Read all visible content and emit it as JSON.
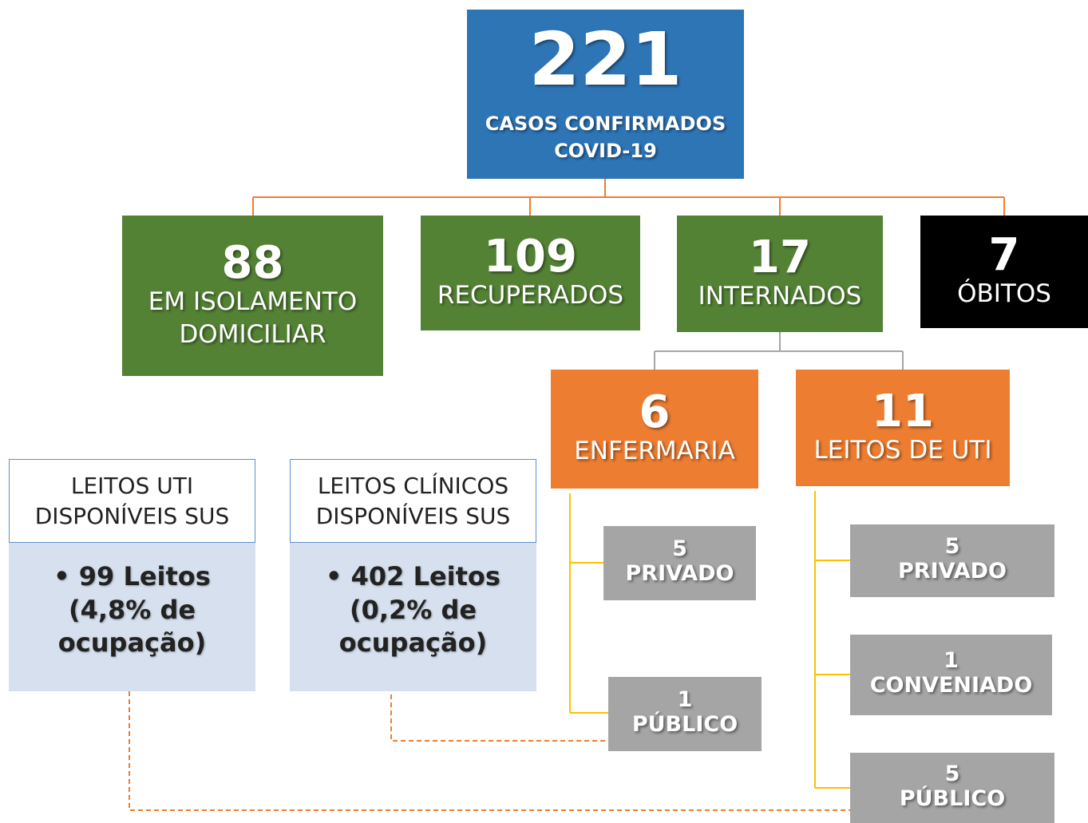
{
  "total": {
    "number": 221,
    "lines": [
      "CASOS CONFIRMADOS",
      "COVID-19"
    ]
  },
  "categories": [
    {
      "number": 88,
      "lines": [
        "EM ISOLAMENTO",
        "DOMICILIAR"
      ]
    },
    {
      "number": 109,
      "lines": [
        "RECUPERADOS"
      ]
    },
    {
      "number": 17,
      "lines": [
        "INTERNADOS"
      ]
    },
    {
      "number": 7,
      "lines": [
        "ÓBITOS"
      ]
    }
  ],
  "hospital": [
    {
      "number": 6,
      "lines": [
        "ENFERMARIA"
      ]
    },
    {
      "number": 11,
      "lines": [
        "LEITOS DE UTI"
      ]
    }
  ],
  "ward_breakdown": [
    {
      "number": 5,
      "label": "PRIVADO"
    },
    {
      "number": 1,
      "label": "PÚBLICO"
    }
  ],
  "icu_breakdown": [
    {
      "number": 5,
      "label": "PRIVADO"
    },
    {
      "number": 1,
      "label": "CONVENIADO"
    },
    {
      "number": 5,
      "label": "PÚBLICO"
    }
  ],
  "beds": [
    {
      "title": [
        "LEITOS UTI",
        "DISPONÍVEIS SUS"
      ],
      "bullet": [
        "99 Leitos",
        "(4,8% de",
        "ocupação)"
      ]
    },
    {
      "title": [
        "LEITOS CLÍNICOS",
        "DISPONÍVEIS SUS"
      ],
      "bullet": [
        "402 Leitos",
        "(0,2% de",
        "ocupação)"
      ]
    }
  ]
}
